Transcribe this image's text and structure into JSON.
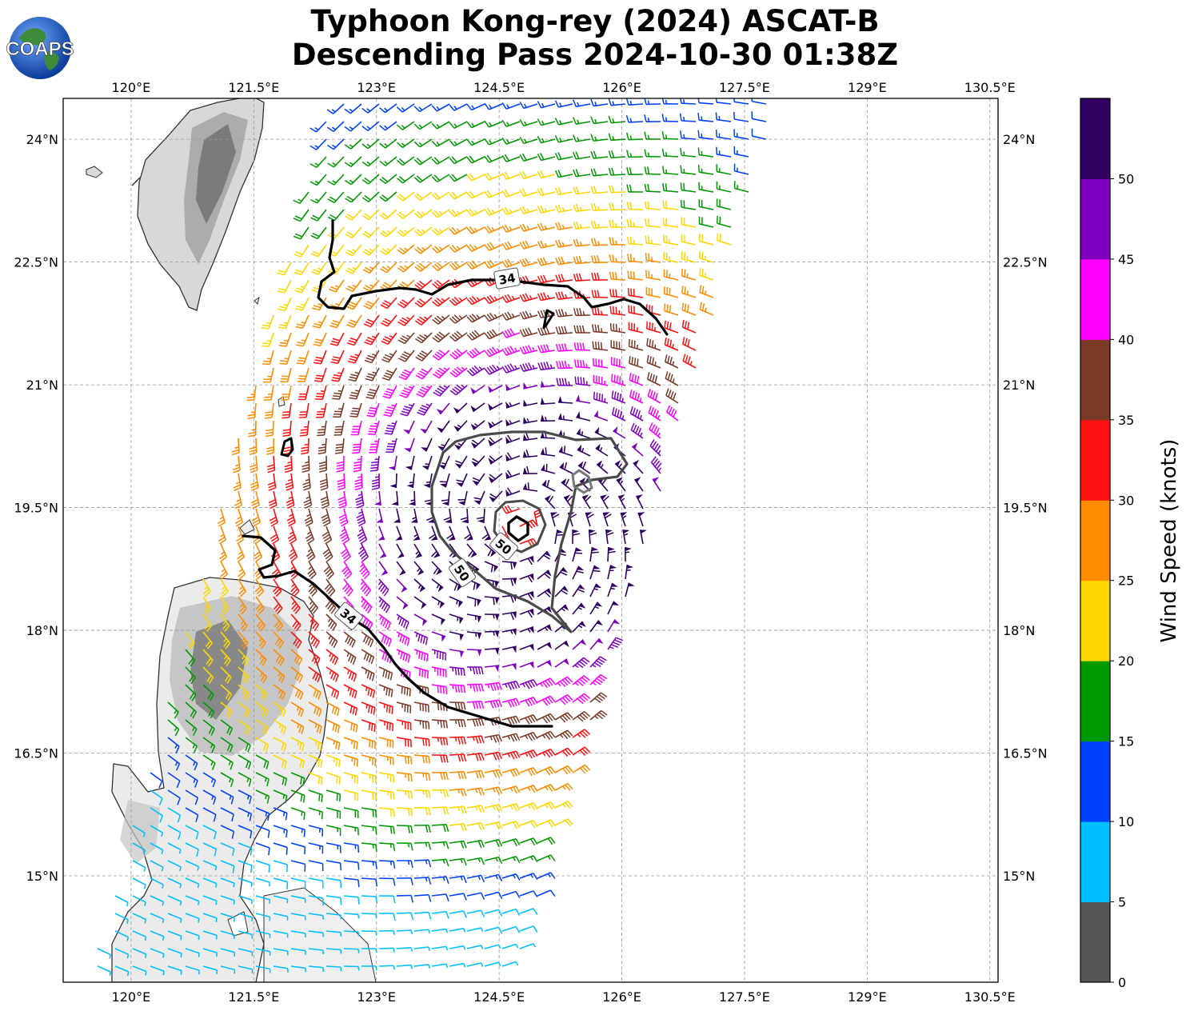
{
  "title": {
    "line1": "Typhoon Kong-rey (2024) ASCAT-B",
    "line2": "Descending Pass 2024-10-30 01:38Z"
  },
  "logo": {
    "text": "COAPS",
    "icon": "globe-icon"
  },
  "map": {
    "lon_ticks": [
      "120°E",
      "121.5°E",
      "123°E",
      "124.5°E",
      "126°E",
      "127.5°E",
      "129°E",
      "130.5°E"
    ],
    "lat_ticks": [
      "24°N",
      "22.5°N",
      "21°N",
      "19.5°N",
      "18°N",
      "16.5°N",
      "15°N"
    ],
    "lon_values": [
      120,
      121.5,
      123,
      124.5,
      126,
      127.5,
      129,
      130.5
    ],
    "lat_values": [
      24,
      22.5,
      21,
      19.5,
      18,
      16.5,
      15
    ],
    "extent": {
      "lon": [
        119.17,
        130.6
      ],
      "lat": [
        13.7,
        24.5
      ]
    },
    "storm_center": {
      "lon": 124.75,
      "lat": 19.3
    },
    "contour_labels": [
      "34",
      "34",
      "50",
      "50"
    ],
    "contour_colors": {
      "34kt": "#000000",
      "50kt": "#555555",
      "64kt": "#000000"
    }
  },
  "colorbar": {
    "label": "Wind Speed (knots)",
    "ticks": [
      "0",
      "5",
      "10",
      "15",
      "20",
      "25",
      "30",
      "35",
      "40",
      "45",
      "50"
    ],
    "colors": [
      "#555555",
      "#00bfff",
      "#0040ff",
      "#009900",
      "#ffd700",
      "#ff8c00",
      "#ff1010",
      "#7b3a27",
      "#ff00ff",
      "#8000bf",
      "#300060"
    ]
  }
}
